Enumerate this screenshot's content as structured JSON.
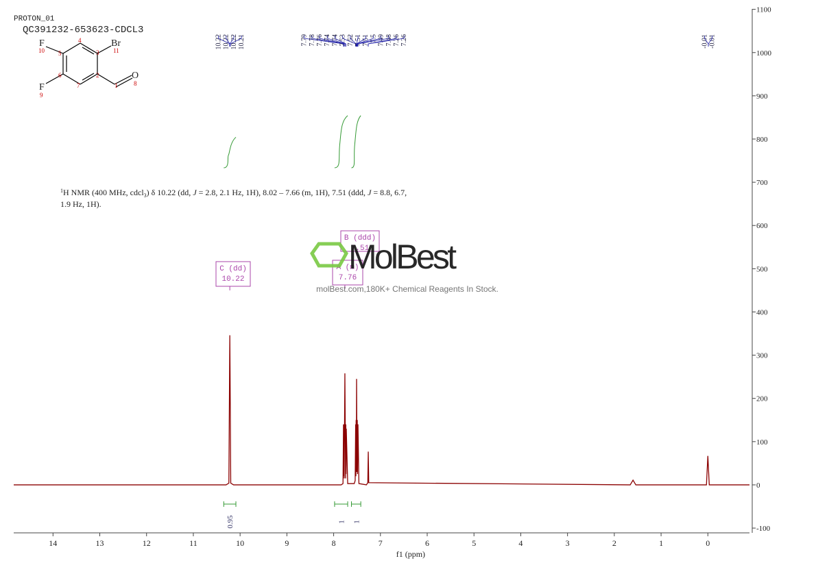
{
  "header": {
    "experiment": "PROTON_01",
    "sample": "QC391232-653623-CDCL3"
  },
  "structure": {
    "atoms": [
      "F",
      "10",
      "5",
      "4",
      "3",
      "Br",
      "11",
      "F",
      "9",
      "6",
      "7",
      "2",
      "1",
      "O",
      "8"
    ]
  },
  "description": {
    "line1": [
      "1",
      "H NMR (400 MHz, cdcl",
      "3",
      ") δ 10.22 (dd, ",
      "J",
      " = 2.8, 2.1 Hz, 1H), 8.02 – 7.66 (m, 1H), 7.51 (ddd, ",
      "J",
      " = 8.8, 6.7,"
    ],
    "line2": "1.9 Hz, 1H)."
  },
  "watermark": {
    "brand": "MolBest",
    "tagline": "molBest.com,180K+ Chemical Reagents In Stock."
  },
  "chart_data": {
    "type": "line",
    "x_label": "f1 (ppm)",
    "xlim": [
      14.84,
      -0.89
    ],
    "ylim": [
      -111,
      1101
    ],
    "xticks": [
      14,
      13,
      12,
      11,
      10,
      9,
      8,
      7,
      6,
      5,
      4,
      3,
      2,
      1,
      0
    ],
    "yticks": [
      -100,
      0,
      100,
      200,
      300,
      400,
      500,
      600,
      700,
      800,
      900,
      1000,
      1100
    ],
    "series": [
      {
        "color": "#8b0000",
        "x": [
          14.84,
          10.3,
          10.24,
          10.225,
          10.22,
          10.215,
          10.2,
          10.14,
          7.84,
          7.8,
          7.79,
          7.785,
          7.78,
          7.775,
          7.76,
          7.745,
          7.74,
          7.735,
          7.73,
          7.7,
          7.56,
          7.54,
          7.53,
          7.525,
          7.52,
          7.515,
          7.51,
          7.5,
          7.495,
          7.49,
          7.48,
          7.46,
          7.3,
          7.27,
          7.26,
          7.25,
          1.66,
          1.6,
          1.54,
          0.03,
          0.0,
          -0.03,
          -0.89
        ],
        "values": [
          0,
          0,
          4,
          265,
          346,
          270,
          4,
          0,
          0,
          3,
          140,
          20,
          140,
          15,
          258,
          15,
          140,
          25,
          130,
          3,
          3,
          10,
          140,
          20,
          150,
          30,
          245,
          30,
          150,
          25,
          140,
          3,
          0,
          5,
          77,
          5,
          0,
          11,
          0,
          0,
          67,
          0,
          0
        ]
      }
    ],
    "peak_labels": [
      [
        10.22,
        10.22,
        10.22,
        10.21
      ],
      [
        7.79,
        7.78,
        7.76,
        7.74,
        7.74,
        7.53,
        7.52,
        7.51,
        7.51,
        7.5,
        7.49,
        7.48,
        7.26,
        7.26
      ],
      [
        -0.01,
        -0.01
      ]
    ],
    "integrals": [
      {
        "from": 10.35,
        "to": 10.09,
        "value": 0.95
      },
      {
        "from": 7.98,
        "to": 7.7,
        "value": 1.0
      },
      {
        "from": 7.62,
        "to": 7.42,
        "value": 1.0
      }
    ],
    "multiplets": [
      {
        "label": "C (dd)",
        "shift": 10.22
      },
      {
        "label": "B (ddd)",
        "shift": 7.51
      },
      {
        "label": "A (m)",
        "shift": 7.76
      }
    ]
  }
}
